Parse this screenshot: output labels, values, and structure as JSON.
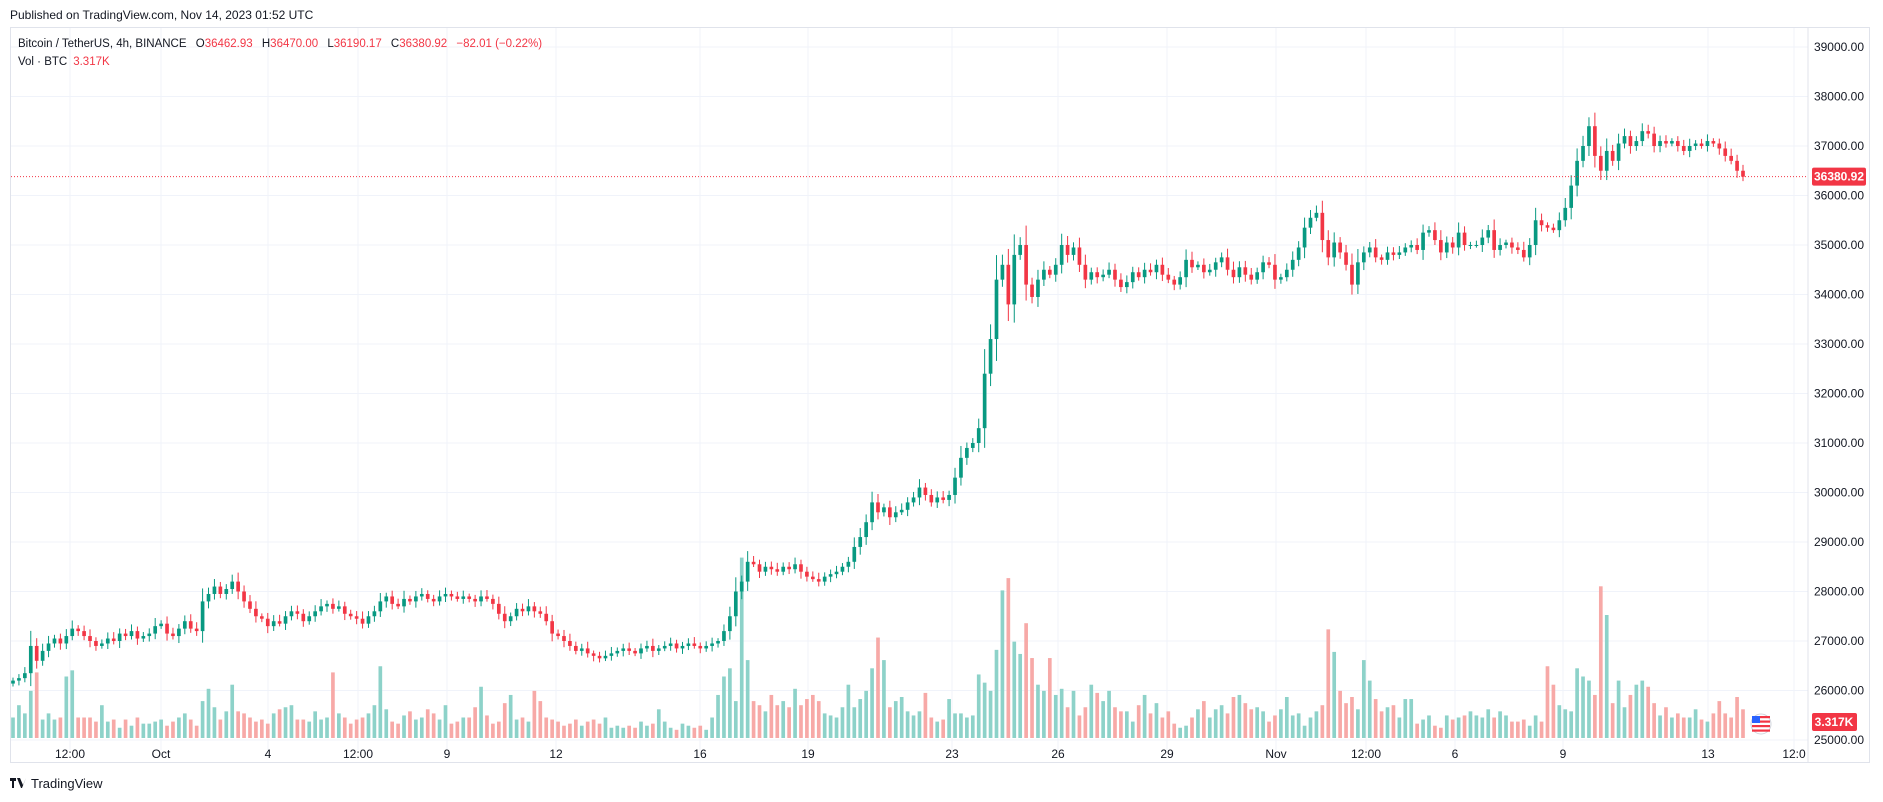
{
  "header": {
    "published": "Published on TradingView.com, Nov 14, 2023 01:52 UTC"
  },
  "legend": {
    "symbol": "Bitcoin / TetherUS, 4h, BINANCE",
    "o_label": "O",
    "o_value": "36462.93",
    "h_label": "H",
    "h_value": "36470.00",
    "l_label": "L",
    "l_value": "36190.17",
    "c_label": "C",
    "c_value": "36380.92",
    "change": "−82.01 (−0.22%)",
    "vol_label": "Vol · BTC",
    "vol_value": "3.317K"
  },
  "footer": {
    "brand": "TradingView"
  },
  "colors": {
    "up": "#089981",
    "down": "#f23645",
    "vol_up": "#8dd2c9",
    "vol_down": "#f7a9a7",
    "grid": "#f0f3fa"
  },
  "chart_data": {
    "type": "candlestick",
    "title": "Bitcoin / TetherUS, 4h, BINANCE",
    "y_ticks": [
      "39000.00",
      "38000.00",
      "37000.00",
      "36000.00",
      "35000.00",
      "34000.00",
      "33000.00",
      "32000.00",
      "31000.00",
      "30000.00",
      "29000.00",
      "28000.00",
      "27000.00",
      "26000.00",
      "25000.00"
    ],
    "ylim": [
      25000,
      39000
    ],
    "x_ticks": [
      "12:00",
      "Oct",
      "4",
      "12:00",
      "9",
      "12",
      "16",
      "19",
      "23",
      "26",
      "29",
      "Nov",
      "12:00",
      "6",
      "9",
      "13",
      "12:0"
    ],
    "last_price_label": "36380.92",
    "last_volume_label": "3.317K",
    "closes": [
      26200,
      26250,
      26350,
      26900,
      26600,
      26800,
      26950,
      27050,
      26950,
      27100,
      27250,
      27200,
      27100,
      27000,
      26900,
      26950,
      27050,
      27000,
      27150,
      27100,
      27200,
      27050,
      27100,
      27150,
      27300,
      27350,
      27150,
      27100,
      27250,
      27400,
      27250,
      27200,
      27800,
      27950,
      28100,
      27950,
      28050,
      28200,
      28000,
      27800,
      27650,
      27500,
      27450,
      27300,
      27400,
      27350,
      27500,
      27600,
      27550,
      27400,
      27500,
      27600,
      27700,
      27750,
      27650,
      27700,
      27550,
      27500,
      27450,
      27350,
      27500,
      27600,
      27800,
      27900,
      27750,
      27700,
      27850,
      27800,
      27900,
      27950,
      27850,
      27800,
      27900,
      27950,
      27900,
      27850,
      27900,
      27850,
      27800,
      27900,
      27850,
      27750,
      27550,
      27400,
      27500,
      27650,
      27600,
      27700,
      27600,
      27550,
      27400,
      27150,
      27100,
      27000,
      26900,
      26800,
      26850,
      26750,
      26700,
      26650,
      26700,
      26750,
      26800,
      26850,
      26800,
      26750,
      26850,
      26900,
      26800,
      26850,
      26900,
      26950,
      26850,
      26900,
      26950,
      26900,
      26850,
      26900,
      26950,
      27000,
      27200,
      27500,
      28000,
      28200,
      28600,
      28550,
      28400,
      28500,
      28450,
      28400,
      28500,
      28450,
      28550,
      28400,
      28300,
      28250,
      28200,
      28300,
      28350,
      28400,
      28500,
      28600,
      28900,
      29100,
      29400,
      29800,
      29600,
      29700,
      29500,
      29600,
      29650,
      29800,
      29900,
      30100,
      29950,
      29800,
      29900,
      29850,
      29950,
      30300,
      30700,
      30900,
      31000,
      31300,
      32400,
      33100,
      34300,
      34600,
      33800,
      34800,
      35000,
      34200,
      33950,
      34300,
      34500,
      34400,
      34600,
      35000,
      34800,
      34950,
      34600,
      34300,
      34450,
      34350,
      34400,
      34500,
      34300,
      34150,
      34250,
      34450,
      34350,
      34500,
      34450,
      34600,
      34400,
      34300,
      34200,
      34350,
      34700,
      34550,
      34600,
      34450,
      34500,
      34650,
      34750,
      34500,
      34350,
      34550,
      34400,
      34300,
      34450,
      34650,
      34600,
      34300,
      34350,
      34500,
      34700,
      34950,
      35350,
      35550,
      35650,
      35100,
      34750,
      35050,
      34850,
      34600,
      34200,
      34650,
      34850,
      34950,
      34750,
      34700,
      34850,
      34800,
      34850,
      34950,
      35000,
      34900,
      35250,
      35300,
      35100,
      34850,
      35050,
      34950,
      35250,
      35000,
      35000,
      35000,
      35150,
      35300,
      34900,
      35000,
      35050,
      34950,
      34900,
      34750,
      35000,
      35500,
      35400,
      35350,
      35300,
      35500,
      35750,
      36200,
      36700,
      37000,
      37400,
      36800,
      36500,
      36900,
      36700,
      37050,
      37200,
      37000,
      37100,
      37300,
      37250,
      37000,
      37100,
      37050,
      37100,
      37000,
      36900,
      37000,
      37050,
      37000,
      37100,
      37050,
      36950,
      36800,
      36700,
      36500,
      36380.92
    ],
    "volumes": [
      1.0,
      1.6,
      1.2,
      2.3,
      3.2,
      0.9,
      1.2,
      0.9,
      1.0,
      3.0,
      3.3,
      1.0,
      1.0,
      1.0,
      0.8,
      1.6,
      0.8,
      0.9,
      0.5,
      0.9,
      0.6,
      1.0,
      0.7,
      0.7,
      0.8,
      0.9,
      0.6,
      0.8,
      1.0,
      1.2,
      0.9,
      0.6,
      1.8,
      2.4,
      1.5,
      0.9,
      1.3,
      2.6,
      1.3,
      1.2,
      1.0,
      0.8,
      0.9,
      0.7,
      1.2,
      1.4,
      1.5,
      1.6,
      0.9,
      0.9,
      0.8,
      1.3,
      0.9,
      1.0,
      3.2,
      1.2,
      1.0,
      0.7,
      0.9,
      1.0,
      1.2,
      1.6,
      3.5,
      1.4,
      0.8,
      0.7,
      1.1,
      1.3,
      0.9,
      1.0,
      1.4,
      1.2,
      0.9,
      1.6,
      0.7,
      0.8,
      1.0,
      1.0,
      1.5,
      2.5,
      1.1,
      0.7,
      0.8,
      1.7,
      2.1,
      0.9,
      1.0,
      0.8,
      2.3,
      1.8,
      1.0,
      0.9,
      0.8,
      0.6,
      0.7,
      0.9,
      0.6,
      0.8,
      0.9,
      0.7,
      1.0,
      0.5,
      0.6,
      0.5,
      0.6,
      0.5,
      0.8,
      0.6,
      0.7,
      1.4,
      0.8,
      0.5,
      0.4,
      0.7,
      0.6,
      0.5,
      0.6,
      0.4,
      1.0,
      2.1,
      3.0,
      3.4,
      1.8,
      8.8,
      3.8,
      1.8,
      1.6,
      1.3,
      2.1,
      1.6,
      1.8,
      1.5,
      2.4,
      1.6,
      1.9,
      2.1,
      1.8,
      1.2,
      1.1,
      1.0,
      1.5,
      2.6,
      1.5,
      1.9,
      2.3,
      3.4,
      4.9,
      3.8,
      1.5,
      1.8,
      2.0,
      1.3,
      1.1,
      1.3,
      2.2,
      1.0,
      0.8,
      0.9,
      1.9,
      1.2,
      1.2,
      1.0,
      1.1,
      3.1,
      2.7,
      2.3,
      4.3,
      7.2,
      7.8,
      4.7,
      4.1,
      5.6,
      3.9,
      2.6,
      2.3,
      3.9,
      2.1,
      2.4,
      1.5,
      2.3,
      1.1,
      1.5,
      2.6,
      2.2,
      1.8,
      2.3,
      1.5,
      1.3,
      1.3,
      0.8,
      1.6,
      2.1,
      1.2,
      1.7,
      1.0,
      1.3,
      0.7,
      0.5,
      0.6,
      1.0,
      1.4,
      1.8,
      1.0,
      1.4,
      1.6,
      1.2,
      2.0,
      2.1,
      1.7,
      1.4,
      1.5,
      1.3,
      0.8,
      1.1,
      1.4,
      2.0,
      1.1,
      1.2,
      0.6,
      1.0,
      1.3,
      1.6,
      5.3,
      4.2,
      2.3,
      1.7,
      2.0,
      1.4,
      3.8,
      2.8,
      1.9,
      1.3,
      1.5,
      1.6,
      1.0,
      1.9,
      1.9,
      0.7,
      0.9,
      1.1,
      0.6,
      0.5,
      1.1,
      0.9,
      1.0,
      1.1,
      1.3,
      1.1,
      1.0,
      1.4,
      1.0,
      1.3,
      1.1,
      0.8,
      0.8,
      0.9,
      0.6,
      1.1,
      0.8,
      3.5,
      2.6,
      1.6,
      1.4,
      1.3,
      3.4,
      3.0,
      2.8,
      2.1,
      7.4,
      6.0,
      1.7,
      2.8,
      1.5,
      2.1,
      2.6,
      2.8,
      2.5,
      1.7,
      1.1,
      1.5,
      1.0,
      1.2,
      1.0,
      1.0,
      1.4,
      0.9,
      0.8,
      1.2,
      1.8,
      1.2,
      1.0,
      2.0,
      1.4,
      1.3,
      1.0,
      1.1
    ]
  }
}
